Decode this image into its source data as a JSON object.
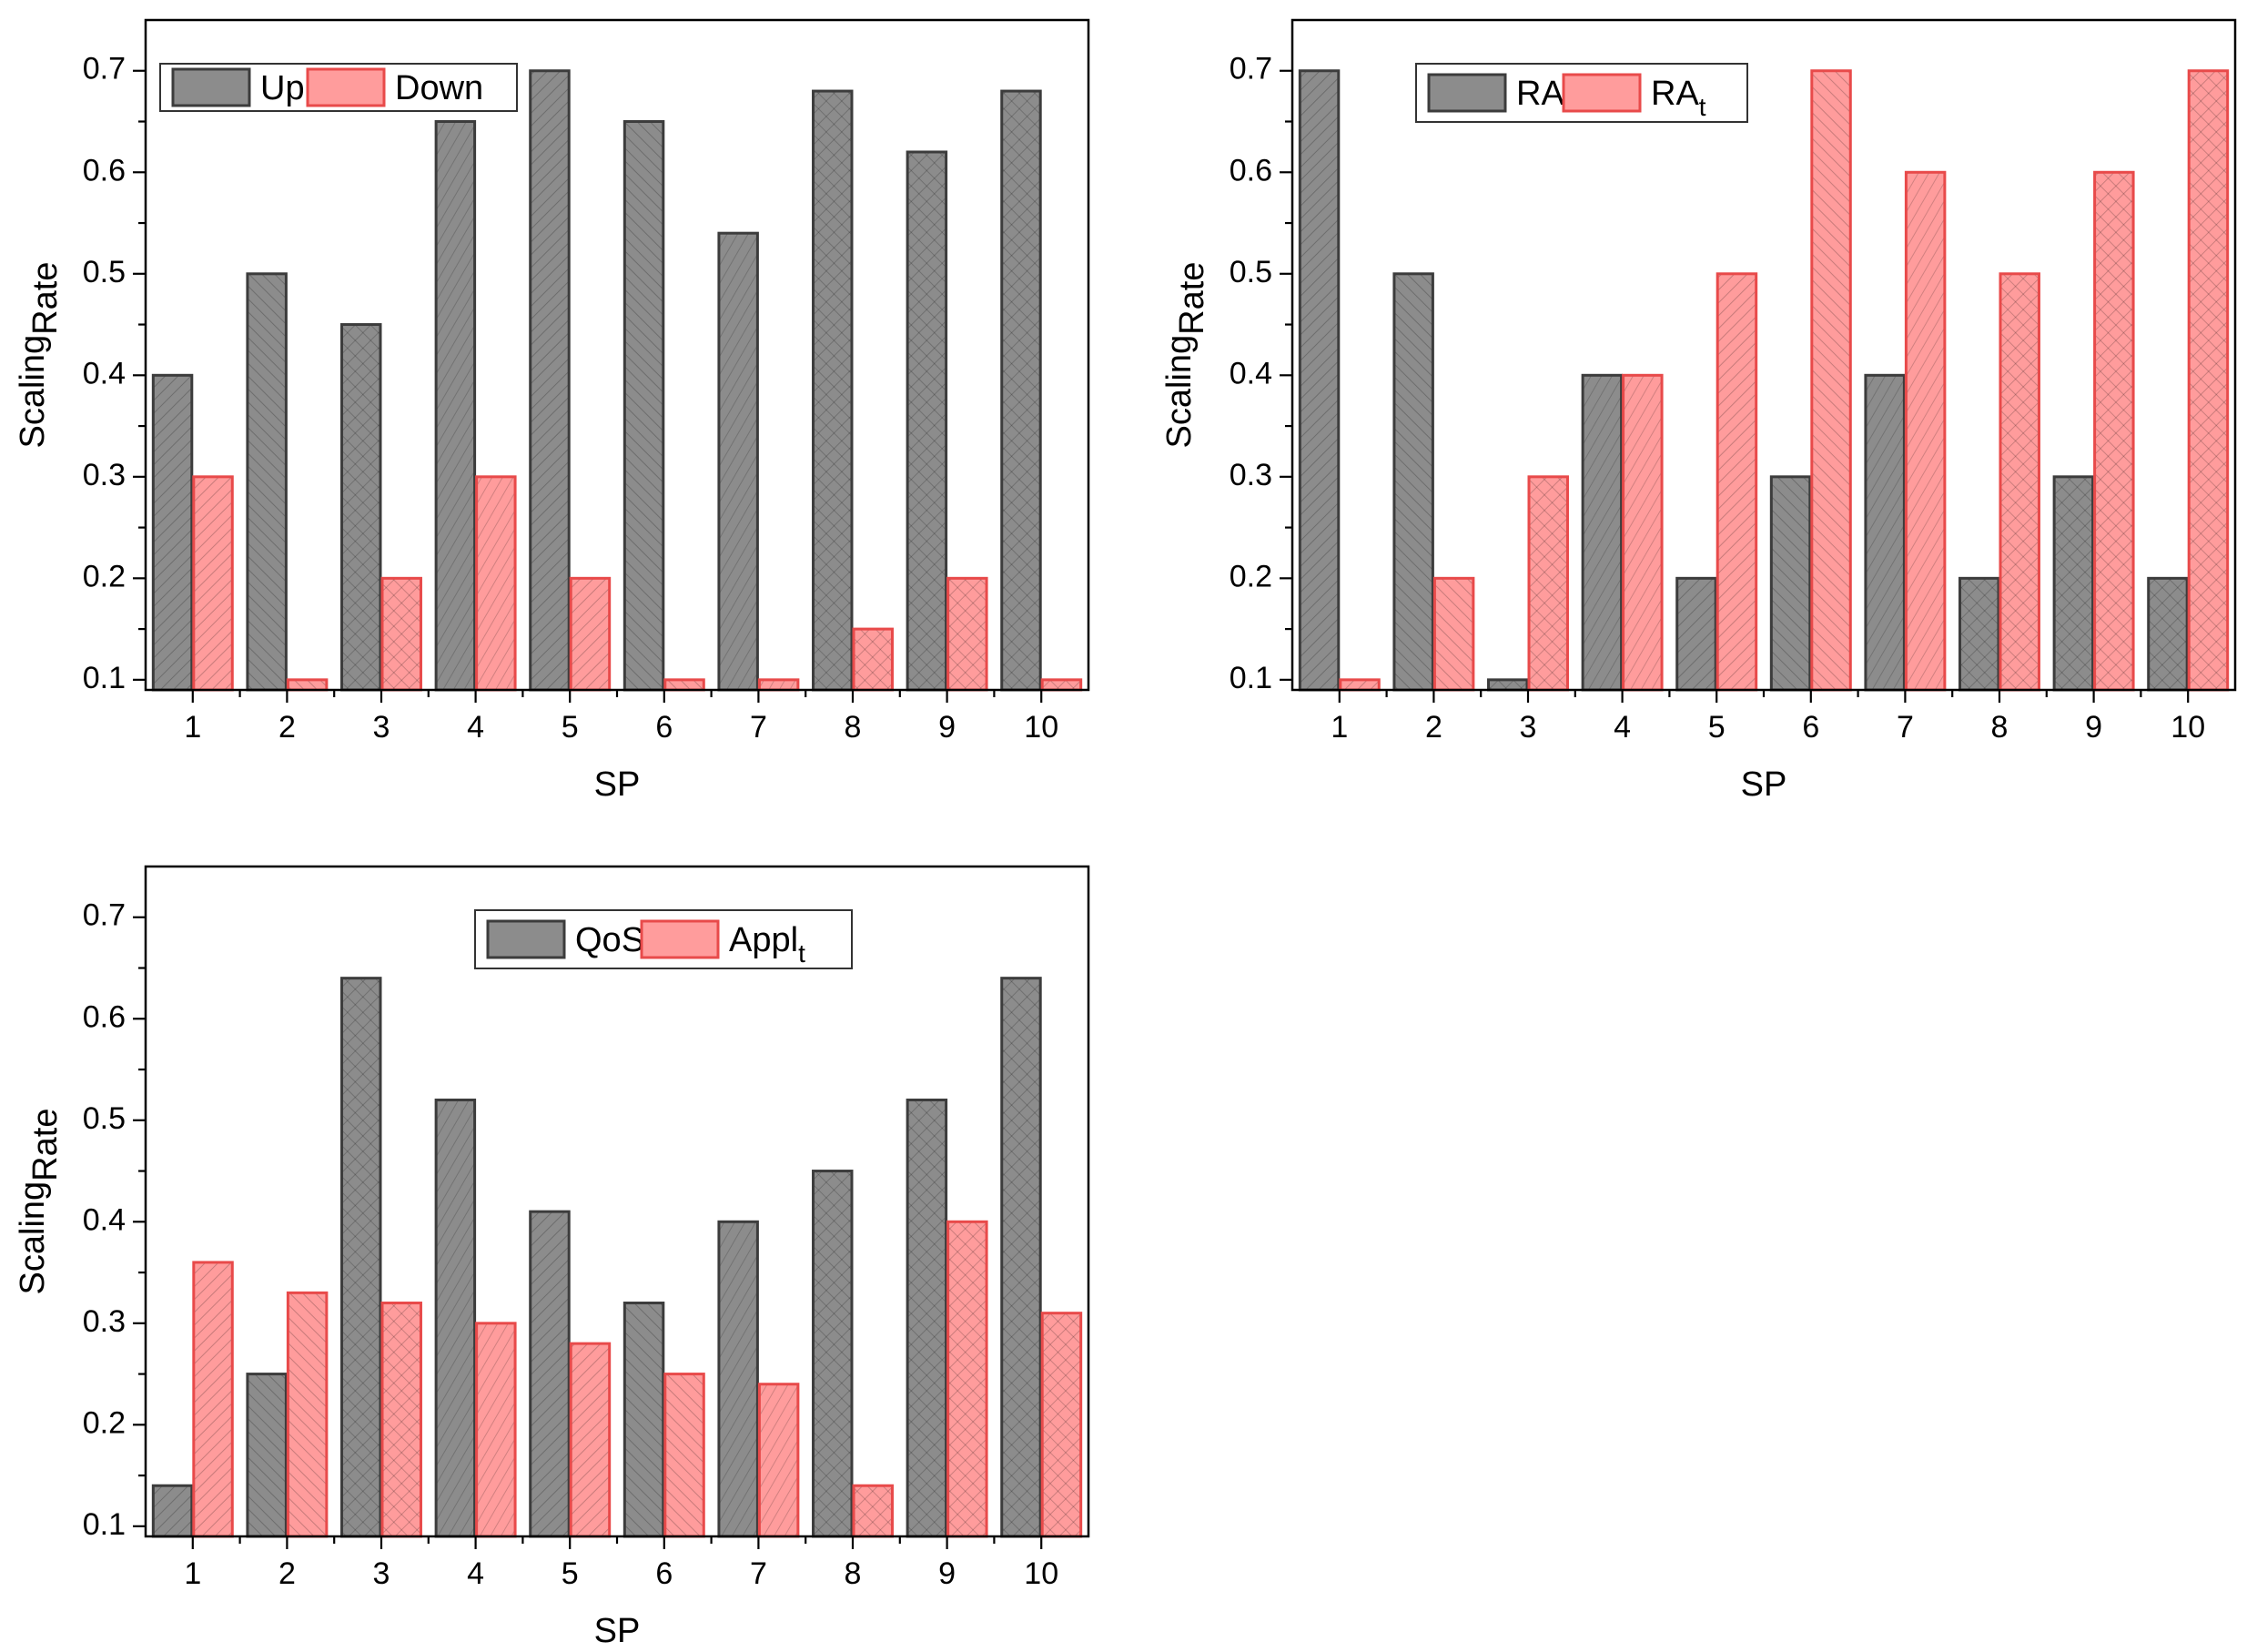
{
  "chart_data": [
    {
      "type": "bar",
      "xlabel": "SP",
      "ylabel": "Scaling",
      "ylabel_sub": "Rate",
      "ylim": [
        0.09,
        0.75
      ],
      "yticks": [
        0.1,
        0.2,
        0.3,
        0.4,
        0.5,
        0.6,
        0.7
      ],
      "ytick_labels": [
        "0.1",
        "0.2",
        "0.3",
        "0.4",
        "0.5",
        "0.6",
        "0.7"
      ],
      "categories": [
        "1",
        "2",
        "3",
        "4",
        "5",
        "6",
        "7",
        "8",
        "9",
        "10"
      ],
      "legend_position": "top-left",
      "series": [
        {
          "name": "Up",
          "name_sub": "",
          "color": "#8c8c8c",
          "edge": "#3c3c3c",
          "values": [
            0.4,
            0.5,
            0.45,
            0.65,
            0.7,
            0.65,
            0.54,
            0.68,
            0.62,
            0.68
          ]
        },
        {
          "name": "Down",
          "name_sub": "",
          "color": "#ff9c9c",
          "edge": "#e84a4a",
          "values": [
            0.3,
            0.1,
            0.2,
            0.3,
            0.2,
            0.1,
            0.1,
            0.15,
            0.2,
            0.1
          ]
        }
      ]
    },
    {
      "type": "bar",
      "xlabel": "SP",
      "ylabel": "Scaling",
      "ylabel_sub": "Rate",
      "ylim": [
        0.09,
        0.75
      ],
      "yticks": [
        0.1,
        0.2,
        0.3,
        0.4,
        0.5,
        0.6,
        0.7
      ],
      "ytick_labels": [
        "0.1",
        "0.2",
        "0.3",
        "0.4",
        "0.5",
        "0.6",
        "0.7"
      ],
      "categories": [
        "1",
        "2",
        "3",
        "4",
        "5",
        "6",
        "7",
        "8",
        "9",
        "10"
      ],
      "legend_position": "top-center",
      "series": [
        {
          "name": "RA",
          "name_sub": "",
          "color": "#8c8c8c",
          "edge": "#3c3c3c",
          "values": [
            0.7,
            0.5,
            0.1,
            0.4,
            0.2,
            0.3,
            0.4,
            0.2,
            0.3,
            0.2
          ]
        },
        {
          "name": "RA",
          "name_sub": "t",
          "color": "#ff9c9c",
          "edge": "#e84a4a",
          "values": [
            0.1,
            0.2,
            0.3,
            0.4,
            0.5,
            0.7,
            0.6,
            0.5,
            0.6,
            0.7
          ]
        }
      ]
    },
    {
      "type": "bar",
      "xlabel": "SP",
      "ylabel": "Scaling",
      "ylabel_sub": "Rate",
      "ylim": [
        0.09,
        0.75
      ],
      "yticks": [
        0.1,
        0.2,
        0.3,
        0.4,
        0.5,
        0.6,
        0.7
      ],
      "ytick_labels": [
        "0.1",
        "0.2",
        "0.3",
        "0.4",
        "0.5",
        "0.6",
        "0.7"
      ],
      "categories": [
        "1",
        "2",
        "3",
        "4",
        "5",
        "6",
        "7",
        "8",
        "9",
        "10"
      ],
      "legend_position": "top-center",
      "series": [
        {
          "name": "QoS",
          "name_sub": "",
          "color": "#8c8c8c",
          "edge": "#3c3c3c",
          "values": [
            0.14,
            0.25,
            0.64,
            0.52,
            0.41,
            0.32,
            0.4,
            0.45,
            0.52,
            0.64
          ]
        },
        {
          "name": "Appl",
          "name_sub": "t",
          "color": "#ff9c9c",
          "edge": "#e84a4a",
          "values": [
            0.36,
            0.33,
            0.32,
            0.3,
            0.28,
            0.25,
            0.24,
            0.14,
            0.4,
            0.31
          ]
        }
      ]
    }
  ]
}
